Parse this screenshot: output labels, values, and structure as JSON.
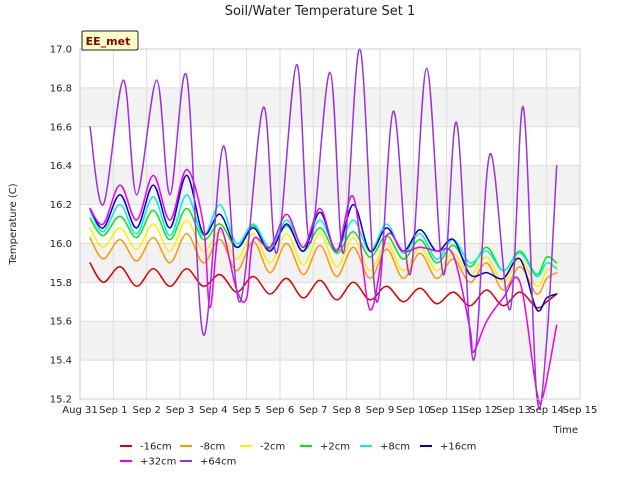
{
  "chart_data": {
    "type": "line",
    "title": "Soil/Water Temperature Set 1",
    "xlabel": "Time",
    "ylabel": "Temperature (C)",
    "badge": "EE_met",
    "xlim": [
      0,
      15
    ],
    "ylim": [
      15.2,
      17.0
    ],
    "x_ticks": [
      0,
      1,
      2,
      3,
      4,
      5,
      6,
      7,
      8,
      9,
      10,
      11,
      12,
      13,
      14,
      15
    ],
    "x_tick_labels": [
      "Aug 31",
      "Sep 1",
      "Sep 2",
      "Sep 3",
      "Sep 4",
      "Sep 5",
      "Sep 6",
      "Sep 7",
      "Sep 8",
      "Sep 9",
      "Sep 10",
      "Sep 11",
      "Sep 12",
      "Sep 13",
      "Sep 14",
      "Sep 15"
    ],
    "y_ticks": [
      15.2,
      15.4,
      15.6,
      15.8,
      16.0,
      16.2,
      16.4,
      16.6,
      16.8,
      17.0
    ],
    "y_tick_labels": [
      "15.2",
      "15.4",
      "15.6",
      "15.8",
      "16.0",
      "16.2",
      "16.4",
      "16.6",
      "16.8",
      "17.0"
    ],
    "legend_position": "bottom",
    "series": [
      {
        "name": "-16cm",
        "color": "#dd0000",
        "x": [
          0.3,
          0.7,
          1.2,
          1.7,
          2.2,
          2.7,
          3.2,
          3.7,
          4.2,
          4.7,
          5.2,
          5.7,
          6.2,
          6.7,
          7.2,
          7.7,
          8.2,
          8.7,
          9.2,
          9.7,
          10.2,
          10.7,
          11.2,
          11.7,
          12.2,
          12.7,
          13.2,
          13.7,
          14.0,
          14.3
        ],
        "values": [
          15.9,
          15.8,
          15.88,
          15.78,
          15.87,
          15.78,
          15.87,
          15.78,
          15.84,
          15.75,
          15.83,
          15.74,
          15.82,
          15.72,
          15.81,
          15.71,
          15.8,
          15.71,
          15.78,
          15.7,
          15.77,
          15.69,
          15.75,
          15.68,
          15.76,
          15.68,
          15.75,
          15.67,
          15.7,
          15.74
        ]
      },
      {
        "name": "-8cm",
        "color": "#ff9900",
        "x": [
          0.3,
          0.7,
          1.2,
          1.7,
          2.2,
          2.7,
          3.2,
          3.7,
          4.2,
          4.7,
          5.2,
          5.7,
          6.2,
          6.7,
          7.2,
          7.7,
          8.2,
          8.7,
          9.2,
          9.7,
          10.2,
          10.7,
          11.2,
          11.7,
          12.2,
          12.7,
          13.2,
          13.7,
          14.0,
          14.3
        ],
        "values": [
          16.03,
          15.92,
          16.02,
          15.91,
          16.03,
          15.9,
          16.05,
          15.9,
          16.02,
          15.86,
          16.01,
          15.85,
          16.0,
          15.84,
          15.99,
          15.83,
          15.98,
          15.82,
          15.97,
          15.82,
          15.95,
          15.82,
          15.92,
          15.8,
          15.9,
          15.76,
          15.88,
          15.74,
          15.82,
          15.85
        ]
      },
      {
        "name": "-2cm",
        "color": "#ffee00",
        "x": [
          0.3,
          0.7,
          1.2,
          1.7,
          2.2,
          2.7,
          3.2,
          3.7,
          4.2,
          4.7,
          5.2,
          5.7,
          6.2,
          6.7,
          7.2,
          7.7,
          8.2,
          8.7,
          9.2,
          9.7,
          10.2,
          10.7,
          11.2,
          11.7,
          12.2,
          12.7,
          13.2,
          13.7,
          14.0,
          14.3
        ],
        "values": [
          16.08,
          15.98,
          16.08,
          15.97,
          16.1,
          15.96,
          16.12,
          15.96,
          16.06,
          15.92,
          16.05,
          15.9,
          16.05,
          15.89,
          16.05,
          15.88,
          16.03,
          15.86,
          16.0,
          15.86,
          15.98,
          15.86,
          15.95,
          15.84,
          15.93,
          15.8,
          15.92,
          15.78,
          15.86,
          15.88
        ]
      },
      {
        "name": "+2cm",
        "color": "#00ee00",
        "x": [
          0.3,
          0.7,
          1.2,
          1.7,
          2.2,
          2.7,
          3.2,
          3.7,
          4.2,
          4.7,
          5.2,
          5.7,
          6.2,
          6.7,
          7.2,
          7.7,
          8.2,
          8.7,
          9.2,
          9.7,
          10.2,
          10.7,
          11.2,
          11.7,
          12.2,
          12.7,
          13.2,
          13.7,
          14.0,
          14.3
        ],
        "values": [
          16.13,
          16.04,
          16.14,
          16.03,
          16.17,
          16.02,
          16.18,
          16.02,
          16.1,
          15.98,
          16.09,
          15.97,
          16.09,
          15.96,
          16.08,
          15.95,
          16.06,
          15.93,
          16.04,
          15.92,
          16.02,
          15.9,
          15.99,
          15.88,
          15.98,
          15.86,
          15.96,
          15.84,
          15.93,
          15.9
        ]
      },
      {
        "name": "+8cm",
        "color": "#00eeee",
        "x": [
          0.3,
          0.7,
          1.2,
          1.7,
          2.2,
          2.7,
          3.2,
          3.7,
          4.2,
          4.7,
          5.2,
          5.7,
          6.2,
          6.7,
          7.2,
          7.7,
          8.2,
          8.7,
          9.2,
          9.7,
          10.2,
          10.7,
          11.2,
          11.7,
          12.2,
          12.7,
          13.2,
          13.7,
          14.0,
          14.3
        ],
        "values": [
          16.17,
          16.06,
          16.2,
          16.05,
          16.24,
          16.04,
          16.25,
          16.04,
          16.2,
          16.0,
          16.1,
          15.98,
          16.12,
          15.98,
          16.12,
          15.97,
          16.12,
          15.96,
          16.1,
          15.95,
          16.05,
          15.92,
          16.02,
          15.9,
          15.96,
          15.86,
          15.95,
          15.83,
          15.9,
          15.87
        ]
      },
      {
        "name": "+16cm",
        "color": "#0000cc",
        "x": [
          0.3,
          0.7,
          1.2,
          1.7,
          2.2,
          2.7,
          3.2,
          3.7,
          4.2,
          4.7,
          5.2,
          5.7,
          6.2,
          6.7,
          7.2,
          7.7,
          8.2,
          8.7,
          9.2,
          9.7,
          10.2,
          10.7,
          11.2,
          11.7,
          12.2,
          12.7,
          13.2,
          13.7,
          14.0,
          14.3
        ],
        "values": [
          16.18,
          16.08,
          16.25,
          16.08,
          16.3,
          16.08,
          16.35,
          16.05,
          16.15,
          15.98,
          16.08,
          15.96,
          16.1,
          15.96,
          16.16,
          15.96,
          16.2,
          15.96,
          16.08,
          15.96,
          16.07,
          15.96,
          16.02,
          15.84,
          15.85,
          15.82,
          15.92,
          15.66,
          15.72,
          15.74
        ]
      },
      {
        "name": "+32cm",
        "color": "#ee00ee",
        "x": [
          0.3,
          0.7,
          1.2,
          1.7,
          2.2,
          2.7,
          3.2,
          3.7,
          3.9,
          4.2,
          4.7,
          5.0,
          5.2,
          5.7,
          6.2,
          6.7,
          7.2,
          7.7,
          8.2,
          8.7,
          9.2,
          9.7,
          10.2,
          10.7,
          11.2,
          11.7,
          11.8,
          12.2,
          12.7,
          13.2,
          13.7,
          13.9,
          14.3
        ],
        "values": [
          16.18,
          16.1,
          16.3,
          16.12,
          16.35,
          16.12,
          16.38,
          16.1,
          15.67,
          16.08,
          15.76,
          15.72,
          16.02,
          15.98,
          16.15,
          15.98,
          16.18,
          15.96,
          16.24,
          15.66,
          16.04,
          15.96,
          15.98,
          15.96,
          15.94,
          15.56,
          15.44,
          15.6,
          15.72,
          15.8,
          15.24,
          15.22,
          15.58
        ]
      },
      {
        "name": "+64cm",
        "color": "#9933dd",
        "x": [
          0.3,
          0.7,
          1.3,
          1.7,
          2.3,
          2.7,
          3.2,
          3.7,
          4.3,
          4.8,
          5.5,
          5.9,
          6.5,
          6.9,
          7.5,
          7.9,
          8.4,
          8.9,
          9.4,
          9.9,
          10.4,
          10.9,
          11.3,
          11.8,
          12.3,
          12.9,
          13.3,
          13.7,
          14.0,
          14.3
        ],
        "values": [
          16.6,
          16.2,
          16.84,
          16.25,
          16.84,
          16.25,
          16.86,
          15.53,
          16.5,
          15.7,
          16.7,
          15.95,
          16.92,
          16.0,
          16.88,
          15.95,
          17.0,
          15.7,
          16.68,
          15.84,
          16.9,
          15.84,
          16.62,
          15.4,
          16.46,
          15.66,
          16.7,
          15.22,
          15.5,
          16.4
        ]
      }
    ]
  }
}
